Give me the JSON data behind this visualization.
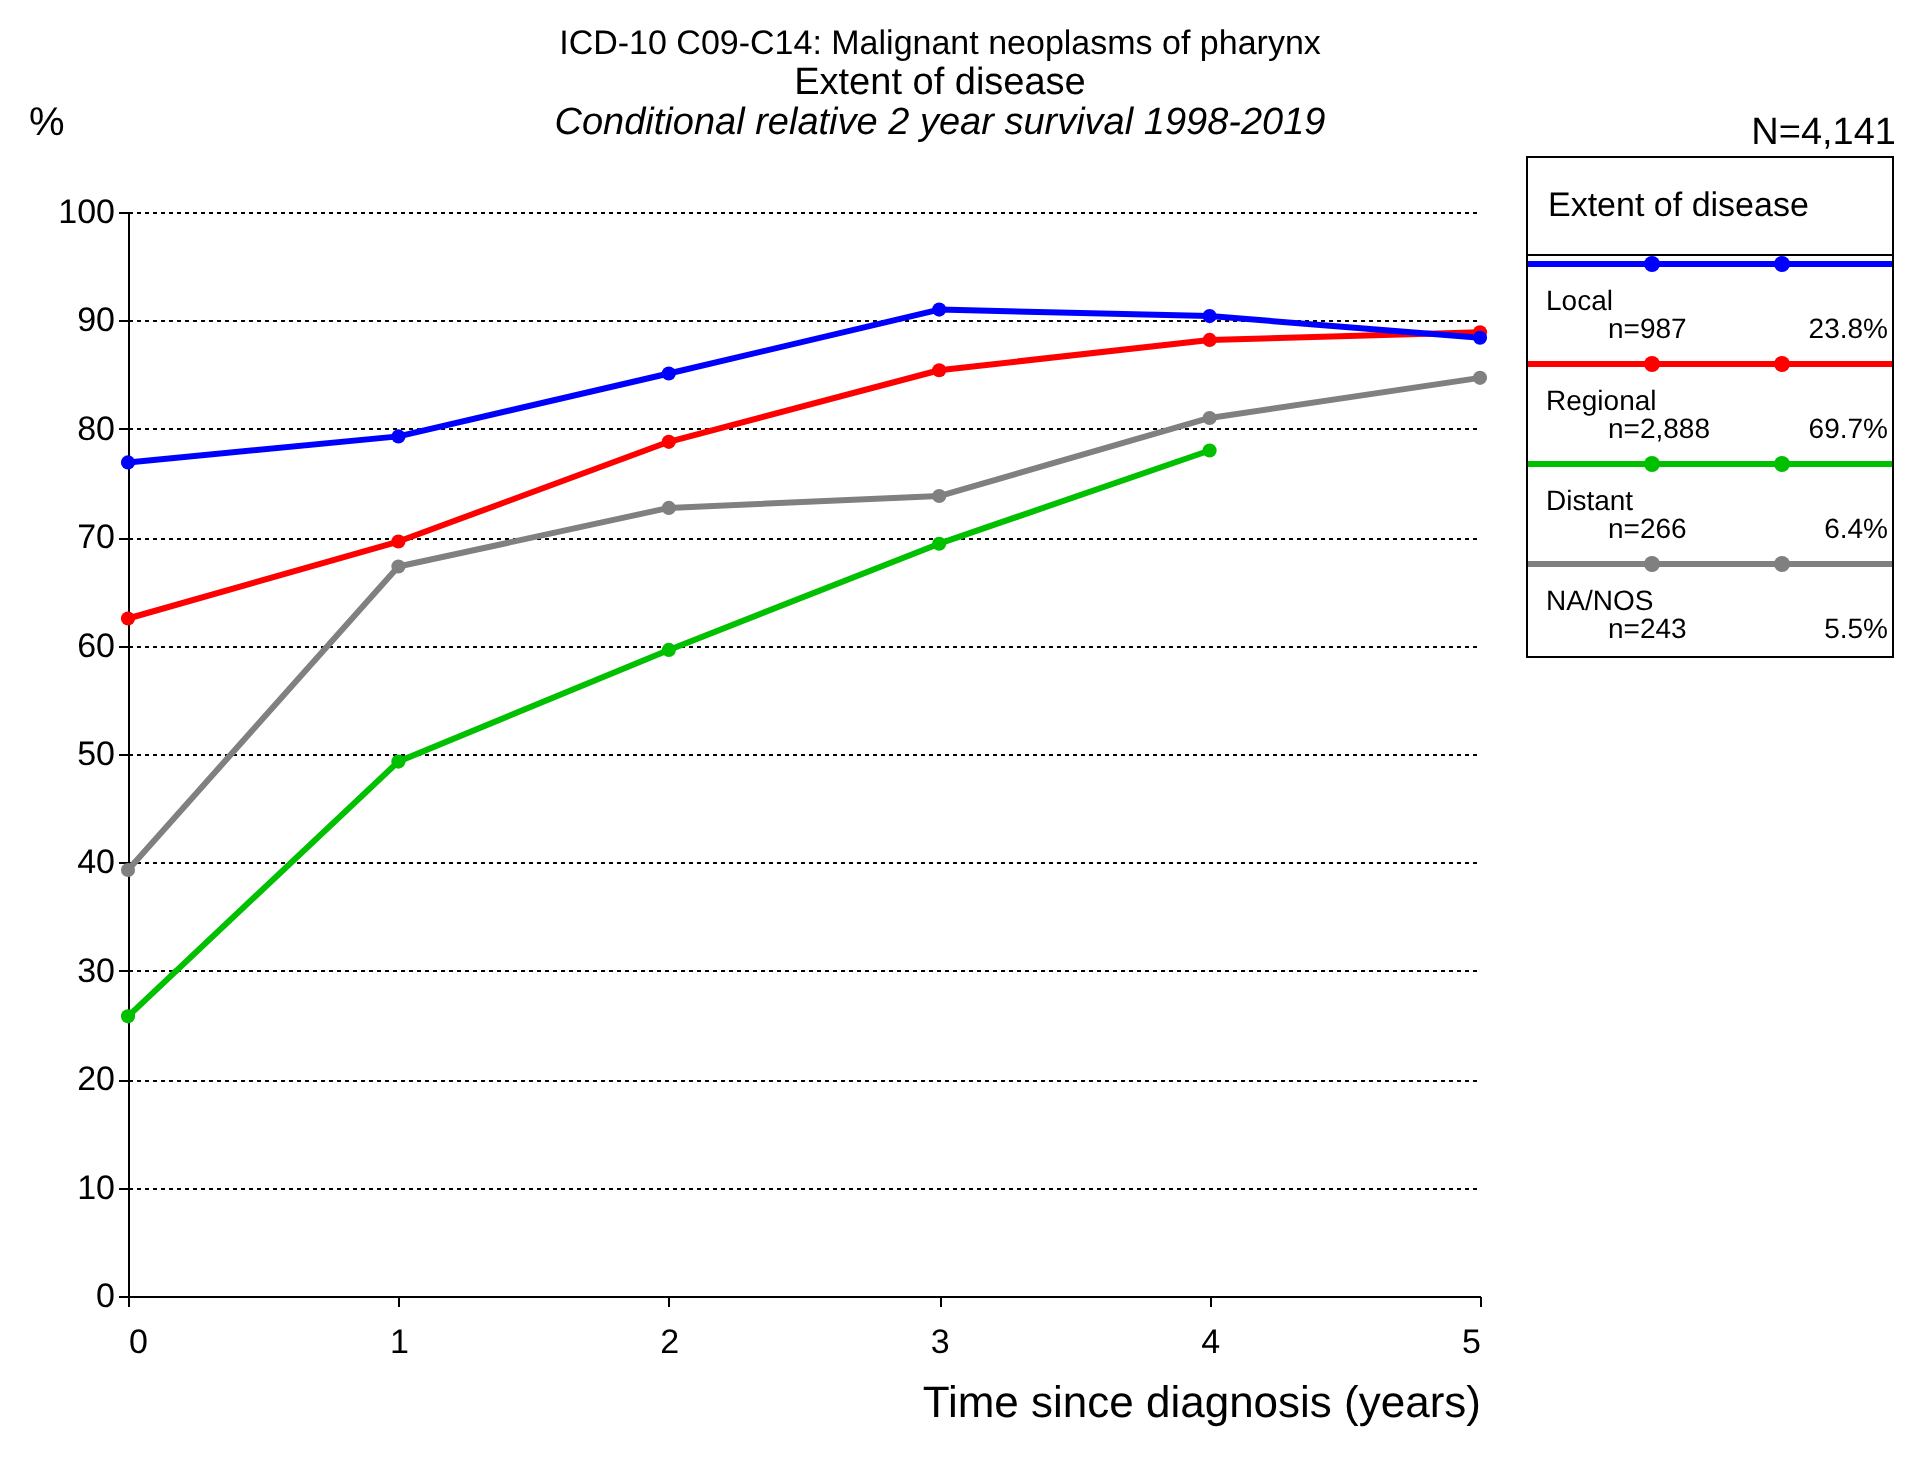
{
  "chart_data": {
    "type": "line",
    "title": "ICD-10 C09-C14: Malignant neoplasms of pharynx",
    "subtitle": "Extent of disease",
    "xlabel": "Time since diagnosis (years)",
    "ylabel": "%",
    "legend_title": "Extent of disease",
    "annotations": [
      "Conditional relative 2 year survival 1998-2019",
      "N=4,141",
      "n=987",
      "23.8%",
      "n=2,888",
      "69.7%",
      "n=266",
      "6.4%",
      "n=243",
      "5.5%"
    ],
    "x": [
      0,
      1,
      2,
      3,
      4,
      5
    ],
    "xlim": [
      0,
      5
    ],
    "xticks": [
      0,
      1,
      2,
      3,
      4,
      5
    ],
    "ylim": [
      0,
      100
    ],
    "yticks": [
      0,
      10,
      20,
      30,
      40,
      50,
      60,
      70,
      80,
      90,
      100
    ],
    "grid": "y",
    "legend": "right",
    "marker": "circle",
    "line_style": "solid",
    "series": [
      {
        "name": "Local",
        "color": "#0000ff",
        "values": [
          76.9,
          79.3,
          85.1,
          91.0,
          90.4,
          88.4
        ]
      },
      {
        "name": "Regional",
        "color": "#ff0000",
        "values": [
          62.5,
          69.6,
          78.8,
          85.4,
          88.2,
          88.9
        ]
      },
      {
        "name": "Distant",
        "color": "#00c000",
        "values": [
          25.8,
          49.3,
          59.6,
          69.4,
          78.0,
          null
        ]
      },
      {
        "name": "NA/NOS",
        "color": "#808080",
        "values": [
          39.3,
          67.3,
          72.7,
          73.8,
          81.0,
          84.7
        ]
      }
    ]
  }
}
